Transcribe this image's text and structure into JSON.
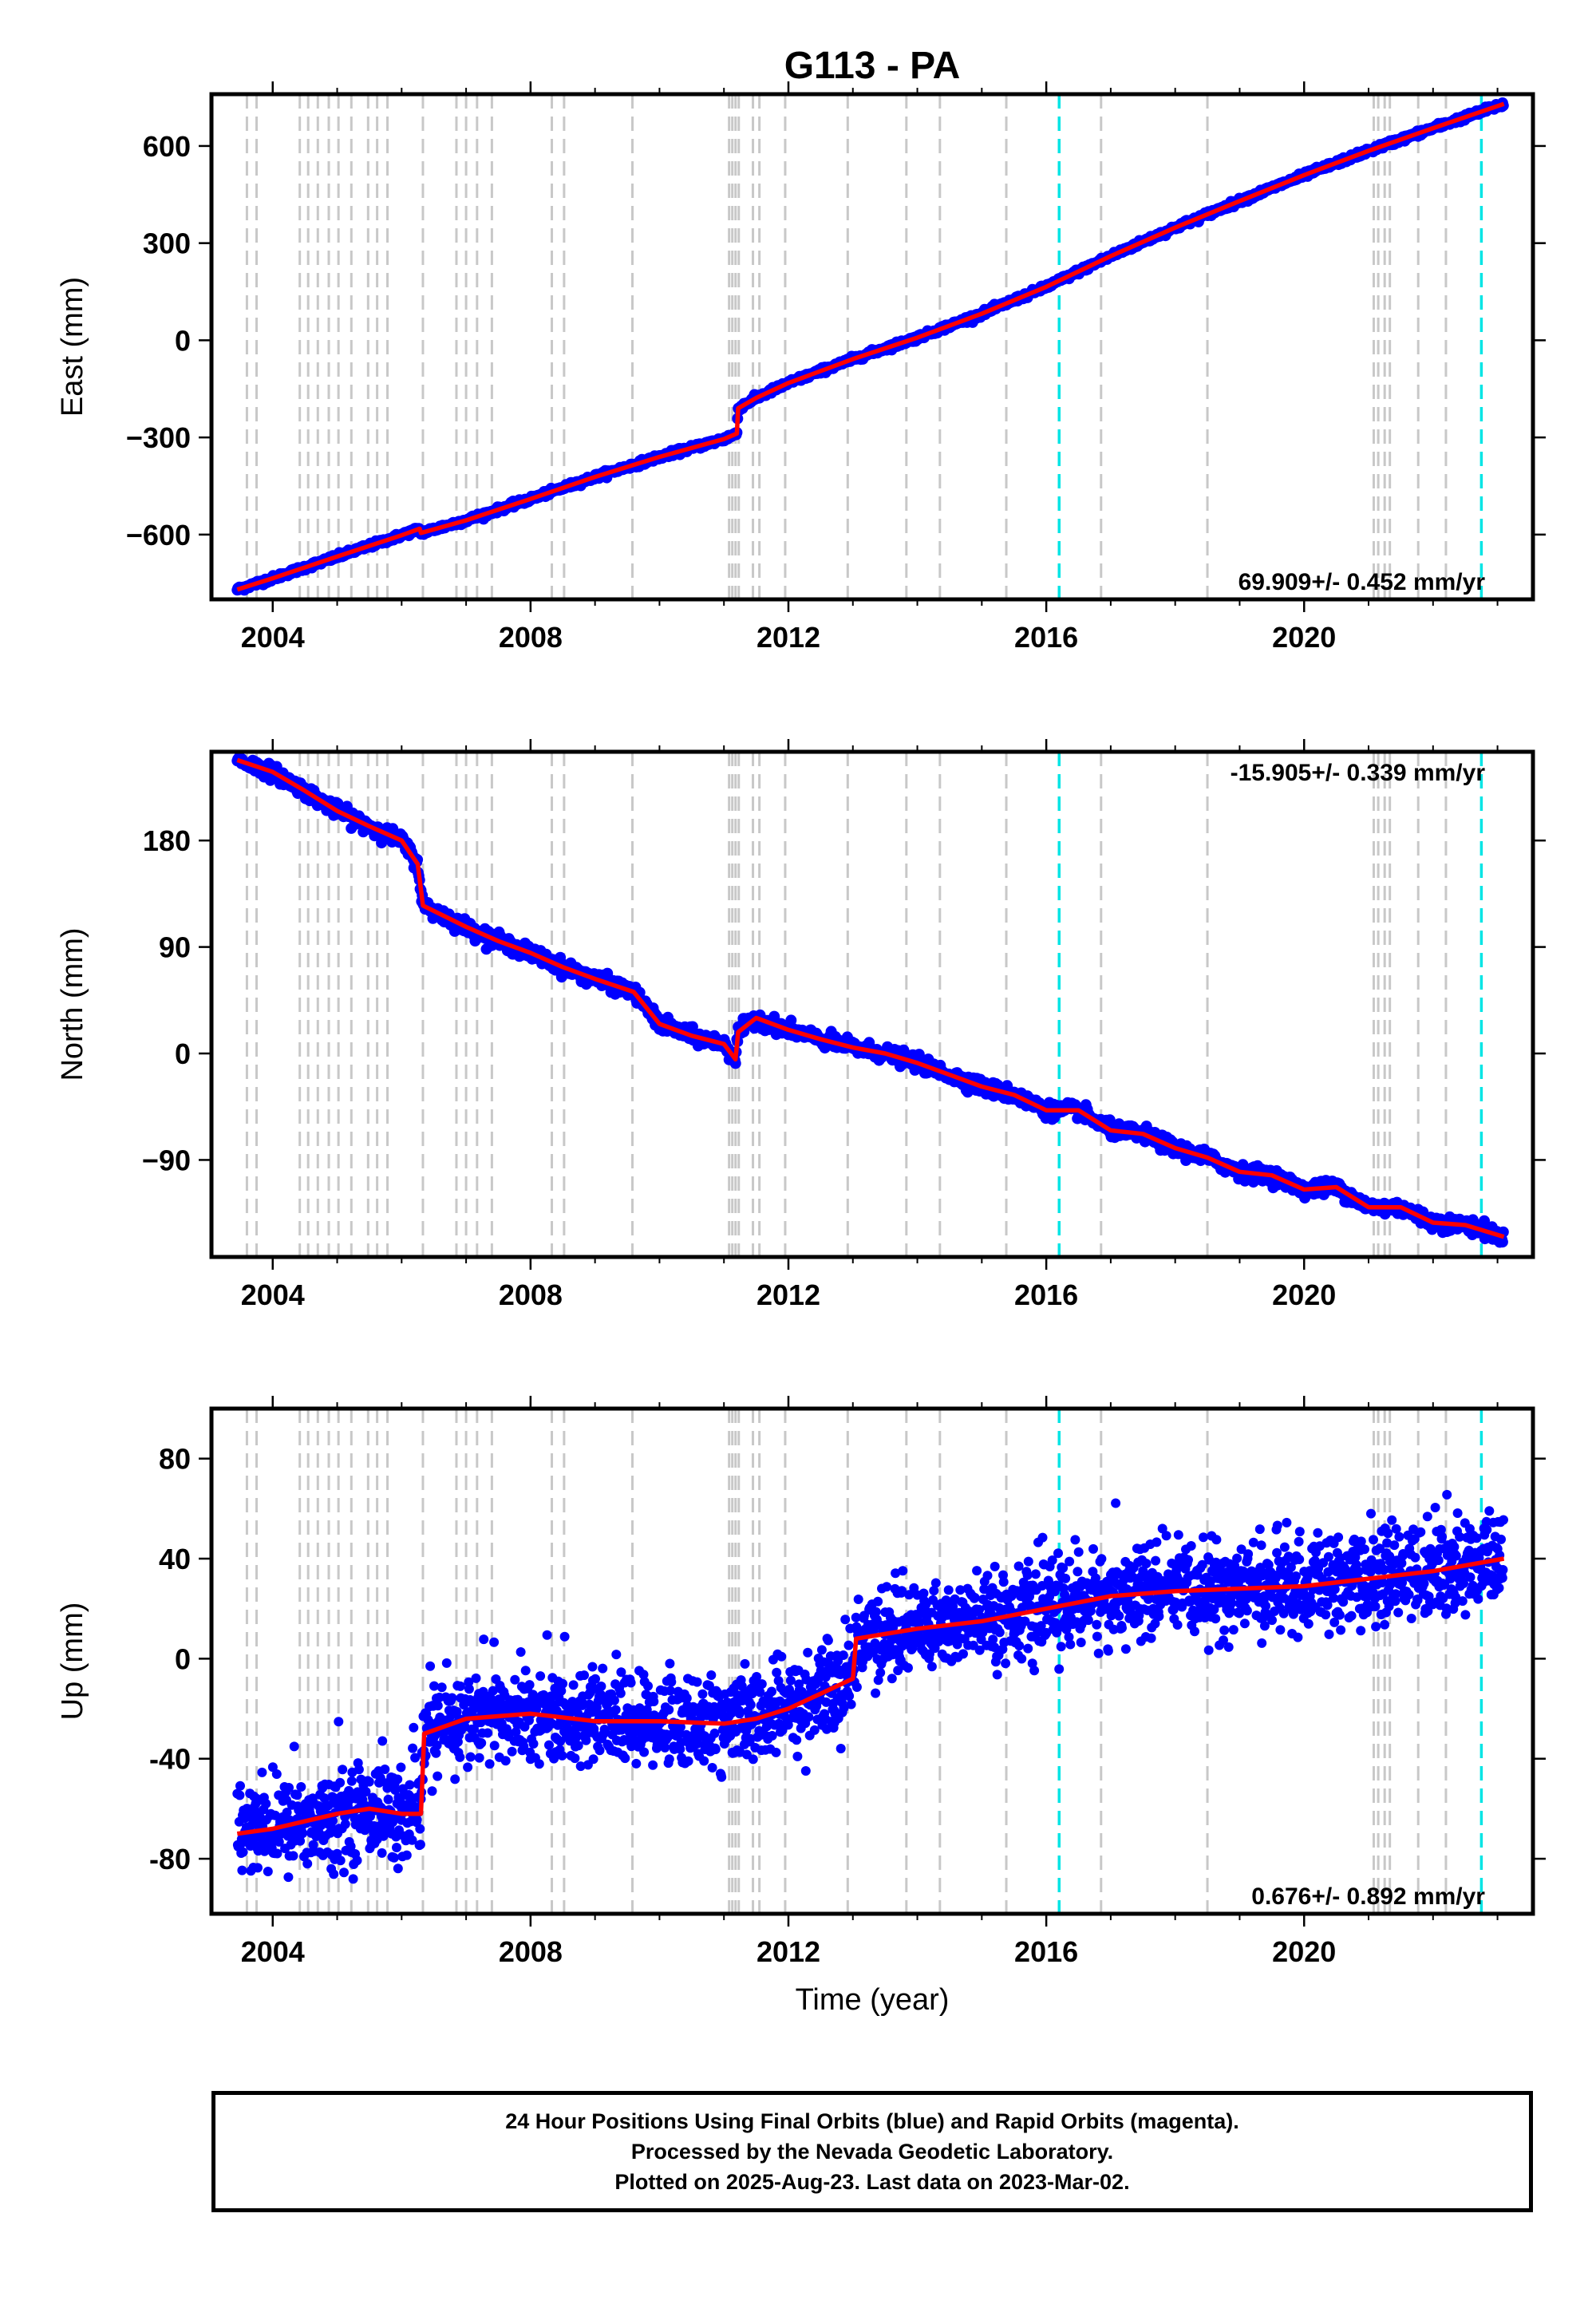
{
  "chart_data": {
    "type": "scatter",
    "title": "G113 - PA",
    "xlabel": "Time (year)",
    "xlim": [
      2003.05,
      2023.55
    ],
    "x_ticks": [
      2004,
      2008,
      2012,
      2016,
      2020
    ],
    "x_tick_labels": [
      "2004",
      "2008",
      "2012",
      "2016",
      "2020"
    ],
    "grid": false,
    "colors": {
      "data": "#0000ff",
      "model": "#ff0000",
      "gray_event": "#c8c8c8",
      "cyan_event": "#00e5e5"
    },
    "gray_event_lines": [
      2003.6,
      2003.75,
      2004.42,
      2004.55,
      2004.7,
      2004.87,
      2005.02,
      2005.22,
      2005.48,
      2005.62,
      2005.78,
      2006.33,
      2006.85,
      2007.0,
      2007.17,
      2007.4,
      2008.33,
      2008.52,
      2009.58,
      2011.08,
      2011.13,
      2011.18,
      2011.23,
      2011.45,
      2011.55,
      2011.95,
      2012.92,
      2013.83,
      2014.35,
      2015.38,
      2016.85,
      2018.5,
      2021.08,
      2021.15,
      2021.25,
      2021.33,
      2021.77,
      2022.2
    ],
    "cyan_event_lines": [
      2016.2,
      2022.75
    ],
    "panels": [
      {
        "ylabel": "East (mm)",
        "ylim": [
          -800,
          760
        ],
        "y_ticks": [
          -600,
          -300,
          0,
          300,
          600
        ],
        "y_tick_labels": [
          "−600",
          "−300",
          "0",
          "300",
          "600"
        ],
        "rate_label": "69.909+/- 0.452 mm/yr",
        "rate_position": "bottom-right",
        "noise": 4,
        "series": [
          {
            "values": [
              [
                2003.45,
                -770
              ],
              [
                2004.0,
                -735
              ],
              [
                2005.0,
                -668
              ],
              [
                2006.0,
                -602
              ],
              [
                2006.28,
                -582
              ],
              [
                2006.3,
                -595
              ],
              [
                2007.0,
                -556
              ],
              [
                2008.0,
                -490
              ],
              [
                2009.0,
                -422
              ],
              [
                2010.0,
                -360
              ],
              [
                2011.0,
                -305
              ],
              [
                2011.2,
                -288
              ],
              [
                2011.22,
                -210
              ],
              [
                2011.5,
                -178
              ],
              [
                2012.0,
                -132
              ],
              [
                2013.0,
                -58
              ],
              [
                2014.0,
                8
              ],
              [
                2015.0,
                82
              ],
              [
                2016.0,
                165
              ],
              [
                2017.0,
                260
              ],
              [
                2018.0,
                348
              ],
              [
                2019.0,
                430
              ],
              [
                2020.0,
                510
              ],
              [
                2021.0,
                585
              ],
              [
                2022.0,
                655
              ],
              [
                2023.1,
                730
              ]
            ]
          }
        ]
      },
      {
        "ylabel": "North (mm)",
        "ylim": [
          -172,
          255
        ],
        "y_ticks": [
          -90,
          0,
          90,
          180
        ],
        "y_tick_labels": [
          "−90",
          "0",
          "90",
          "180"
        ],
        "rate_label": "-15.905+/- 0.339 mm/yr",
        "rate_position": "top-right",
        "noise": 3,
        "series": [
          {
            "values": [
              [
                2003.45,
                248
              ],
              [
                2004.0,
                238
              ],
              [
                2004.5,
                222
              ],
              [
                2005.0,
                205
              ],
              [
                2005.5,
                192
              ],
              [
                2006.0,
                180
              ],
              [
                2006.25,
                160
              ],
              [
                2006.33,
                125
              ],
              [
                2007.0,
                107
              ],
              [
                2007.5,
                95
              ],
              [
                2008.0,
                85
              ],
              [
                2008.5,
                73
              ],
              [
                2009.0,
                63
              ],
              [
                2009.6,
                52
              ],
              [
                2010.0,
                25
              ],
              [
                2010.5,
                15
              ],
              [
                2011.0,
                8
              ],
              [
                2011.18,
                -5
              ],
              [
                2011.22,
                18
              ],
              [
                2011.5,
                30
              ],
              [
                2012.0,
                20
              ],
              [
                2012.5,
                12
              ],
              [
                2013.0,
                5
              ],
              [
                2013.5,
                0
              ],
              [
                2014.0,
                -8
              ],
              [
                2014.5,
                -18
              ],
              [
                2015.0,
                -28
              ],
              [
                2015.5,
                -35
              ],
              [
                2016.0,
                -48
              ],
              [
                2016.5,
                -48
              ],
              [
                2017.0,
                -65
              ],
              [
                2017.5,
                -68
              ],
              [
                2018.0,
                -80
              ],
              [
                2018.5,
                -88
              ],
              [
                2019.0,
                -100
              ],
              [
                2019.5,
                -103
              ],
              [
                2020.0,
                -115
              ],
              [
                2020.5,
                -113
              ],
              [
                2021.0,
                -130
              ],
              [
                2021.5,
                -130
              ],
              [
                2022.0,
                -143
              ],
              [
                2022.5,
                -145
              ],
              [
                2023.1,
                -155
              ]
            ]
          }
        ]
      },
      {
        "ylabel": "Up (mm)",
        "ylim": [
          -102,
          100
        ],
        "y_ticks": [
          -80,
          -40,
          0,
          40,
          80
        ],
        "y_tick_labels": [
          "-80",
          "-40",
          "0",
          "40",
          "80"
        ],
        "rate_label": "0.676+/- 0.892 mm/yr",
        "rate_position": "bottom-right",
        "noise": 9,
        "series": [
          {
            "values": [
              [
                2003.45,
                -70
              ],
              [
                2004.0,
                -68
              ],
              [
                2004.5,
                -65
              ],
              [
                2005.0,
                -62
              ],
              [
                2005.5,
                -60
              ],
              [
                2006.0,
                -62
              ],
              [
                2006.3,
                -62
              ],
              [
                2006.35,
                -30
              ],
              [
                2007.0,
                -24
              ],
              [
                2008.0,
                -22
              ],
              [
                2009.0,
                -25
              ],
              [
                2010.0,
                -25
              ],
              [
                2011.0,
                -26
              ],
              [
                2011.5,
                -24
              ],
              [
                2012.0,
                -20
              ],
              [
                2012.5,
                -14
              ],
              [
                2013.0,
                -8
              ],
              [
                2013.05,
                8
              ],
              [
                2014.0,
                12
              ],
              [
                2015.0,
                15
              ],
              [
                2016.0,
                20
              ],
              [
                2017.0,
                25
              ],
              [
                2018.0,
                27
              ],
              [
                2019.0,
                28
              ],
              [
                2020.0,
                29
              ],
              [
                2021.0,
                32
              ],
              [
                2022.0,
                35
              ],
              [
                2023.1,
                40
              ]
            ]
          }
        ]
      }
    ]
  },
  "footer": {
    "line1": "24 Hour Positions Using Final Orbits (blue) and Rapid Orbits (magenta).",
    "line2": "Processed by the Nevada Geodetic Laboratory.",
    "line3": "Plotted on 2025-Aug-23. Last data on 2023-Mar-02."
  }
}
